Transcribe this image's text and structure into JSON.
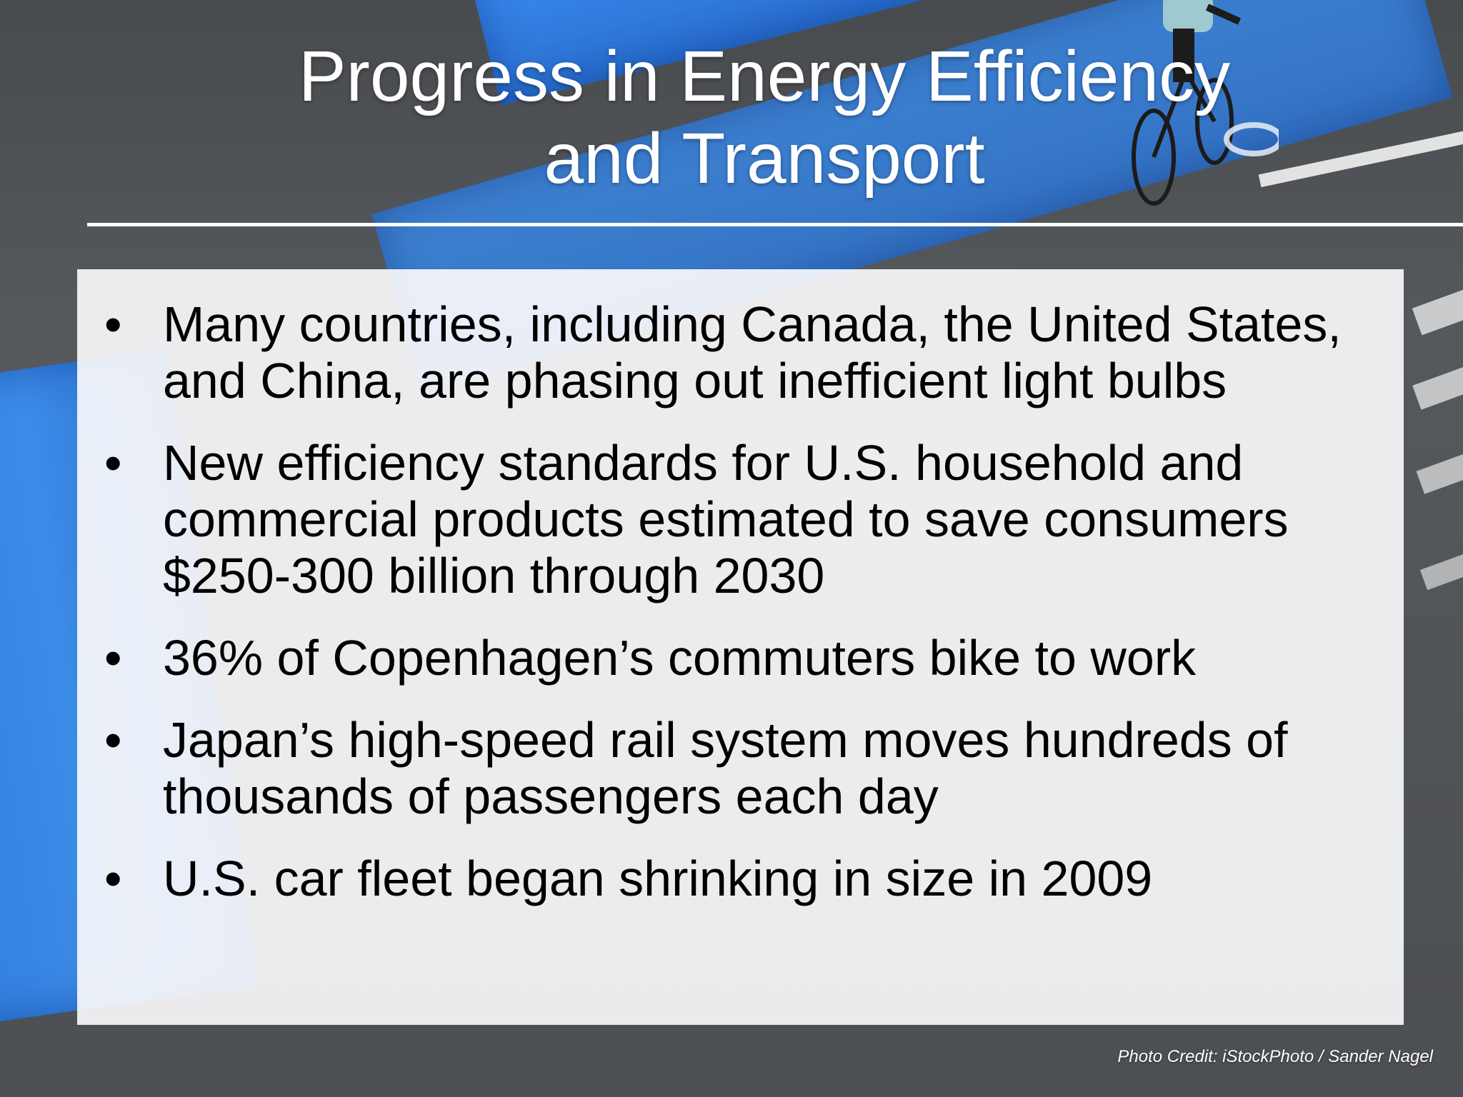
{
  "slide": {
    "title_lines": [
      "Progress in Energy Efficiency",
      "and Transport"
    ],
    "bullets": [
      "Many countries, including Canada, the United States, and China, are phasing out inefficient light bulbs",
      "New efficiency standards for U.S. household and commercial products estimated to save consumers $250-300 billion through 2030",
      "36% of Copenhagen’s commuters bike to work",
      "Japan’s high-speed rail system moves hundreds of thousands of passengers each day",
      "U.S. car fleet began shrinking in size in 2009"
    ],
    "bullet_symbol": "•",
    "photo_credit": "Photo Credit: iStockPhoto / Sander Nagel"
  },
  "background": {
    "subject": "cyclist-on-blue-bike-lane-photo",
    "colors": {
      "asphalt": "#55585c",
      "bike_lane": "#2f7fe3",
      "content_box": "#f8f8fa",
      "title_text": "#ffffff",
      "body_text": "#000000"
    }
  }
}
